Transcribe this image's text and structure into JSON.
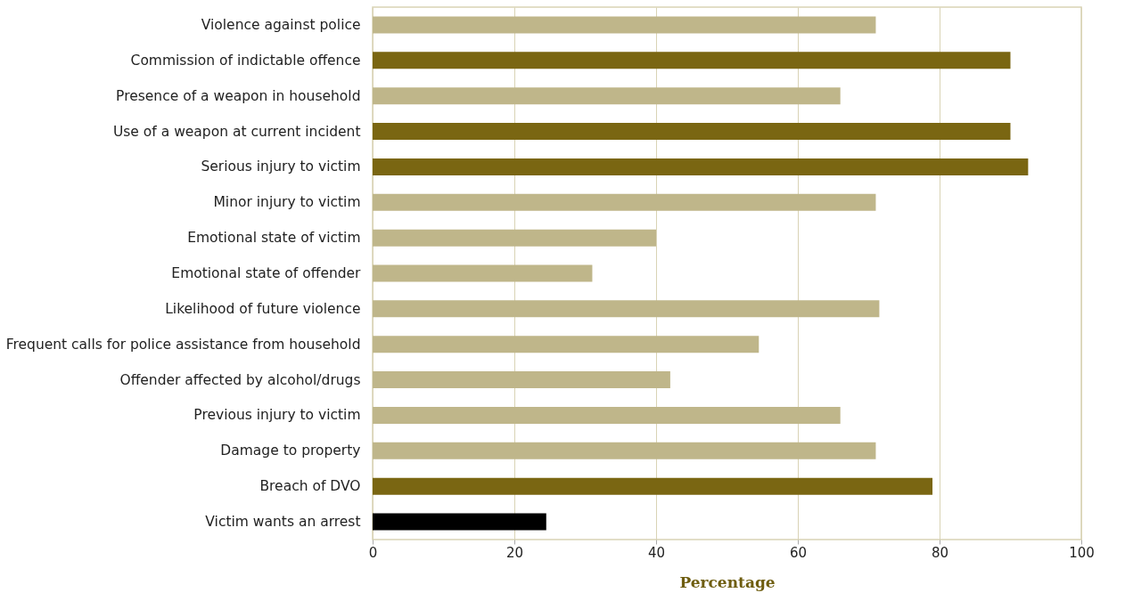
{
  "chart_data": {
    "type": "bar",
    "orientation": "horizontal",
    "xlabel": "Percentage",
    "categories": [
      "Violence against police",
      "Commission of indictable offence",
      "Presence of a weapon in household",
      "Use of a weapon at current incident",
      "Serious injury to victim",
      "Minor injury to victim",
      "Emotional state of victim",
      "Emotional state of offender",
      "Likelihood of future violence",
      "Frequent calls for police assistance from household",
      "Offender affected by alcohol/drugs",
      "Previous injury to victim",
      "Damage to property",
      "Breach of DVO",
      "Victim wants an arrest"
    ],
    "values": [
      71,
      90,
      66,
      90,
      92.5,
      71,
      40,
      31,
      71.5,
      54.5,
      42,
      66,
      71,
      79,
      24.5
    ],
    "colors": [
      "#bfb68a",
      "#7a6612",
      "#bfb68a",
      "#7a6612",
      "#7a6612",
      "#bfb68a",
      "#bfb68a",
      "#bfb68a",
      "#bfb68a",
      "#bfb68a",
      "#bfb68a",
      "#bfb68a",
      "#bfb68a",
      "#7a6612",
      "#000000"
    ],
    "xlim": [
      0,
      100
    ],
    "xticks": [
      0,
      20,
      40,
      60,
      80,
      100
    ],
    "grid": "x",
    "legend": false
  }
}
